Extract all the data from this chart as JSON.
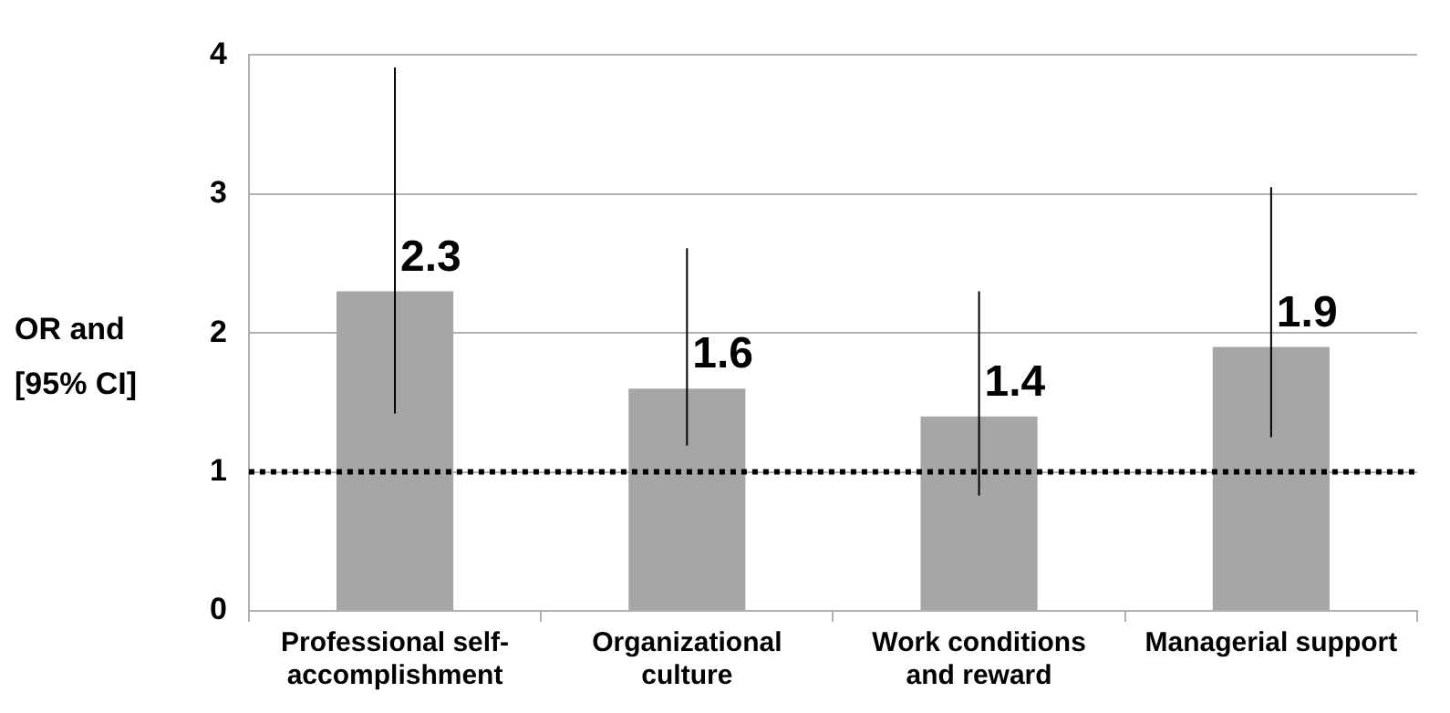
{
  "chart_data": {
    "type": "bar",
    "ylabel": "OR and [95% CI]",
    "categories": [
      "Professional self-accomplishment",
      "Organizational culture",
      "Work conditions and reward",
      "Managerial support"
    ],
    "values": [
      2.3,
      1.6,
      1.4,
      1.9
    ],
    "errors": [
      [
        1.42,
        3.91
      ],
      [
        1.19,
        2.61
      ],
      [
        0.83,
        2.3
      ],
      [
        1.25,
        3.05
      ]
    ],
    "color": "#a6a6a6",
    "data_labels": true,
    "ylim": [
      0,
      4
    ],
    "yticks": [
      0,
      1,
      2,
      3,
      4
    ],
    "grid": "y",
    "ref_lines": [
      {
        "axis": "y",
        "value": 1,
        "line_style": "dotted",
        "color": "#000000"
      }
    ]
  }
}
